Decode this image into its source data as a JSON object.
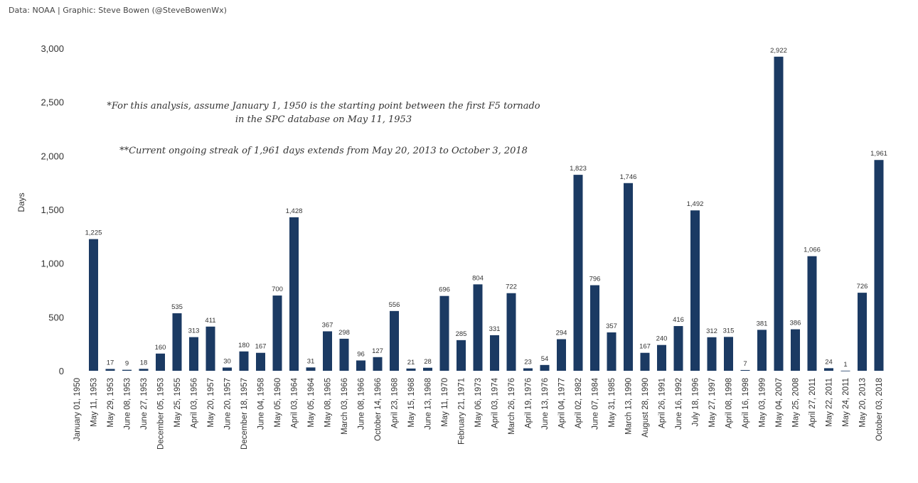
{
  "credit": "Data: NOAA | Graphic: Steve Bowen (@SteveBowenWx)",
  "annotations": [
    "*For this analysis, assume January 1, 1950 is the starting point between the first F5 tornado",
    "in the SPC database on May 11, 1953",
    "**Current ongoing streak of 1,961 days extends from May 20, 2013 to October 3, 2018"
  ],
  "chart_data": {
    "type": "bar",
    "title": "",
    "xlabel": "",
    "ylabel": "Days",
    "ylim": [
      0,
      3000
    ],
    "yticks": [
      0,
      500,
      1000,
      1500,
      2000,
      2500,
      3000
    ],
    "ytick_labels": [
      "0",
      "500",
      "1,000",
      "1,500",
      "2,000",
      "2,500",
      "3,000"
    ],
    "bar_color": "#1b3a63",
    "grid": false,
    "categories": [
      "January 01, 1950",
      "May 11, 1953",
      "May 29, 1953",
      "June 08, 1953",
      "June 27, 1953",
      "December 05, 1953",
      "May 25, 1955",
      "April 03, 1956",
      "May 20, 1957",
      "June 20, 1957",
      "December 18, 1957",
      "June 04, 1958",
      "May 05, 1960",
      "April 03, 1964",
      "May 05, 1964",
      "May 08, 1965",
      "March 03, 1966",
      "June 08, 1966",
      "October 14, 1966",
      "April 23, 1968",
      "May 15, 1968",
      "June 13, 1968",
      "May 11, 1970",
      "February 21, 1971",
      "May 06, 1973",
      "April 03, 1974",
      "March 26, 1976",
      "April 19, 1976",
      "June 13, 1976",
      "April 04, 1977",
      "April 02, 1982",
      "June 07, 1984",
      "May 31, 1985",
      "March 13, 1990",
      "August 28, 1990",
      "April 26, 1991",
      "June 16, 1992",
      "July 18, 1996",
      "May 27, 1997",
      "April 08, 1998",
      "April 16, 1998",
      "May 03, 1999",
      "May 04, 2007",
      "May 25, 2008",
      "April 27, 2011",
      "May 22, 2011",
      "May 24, 2011",
      "May 20, 2013",
      "October 03, 2018"
    ],
    "values": [
      0,
      1225,
      17,
      9,
      18,
      160,
      535,
      313,
      411,
      30,
      180,
      167,
      700,
      1428,
      31,
      367,
      298,
      96,
      127,
      556,
      21,
      28,
      696,
      285,
      804,
      331,
      722,
      23,
      54,
      294,
      1823,
      796,
      357,
      1746,
      167,
      240,
      416,
      1492,
      312,
      315,
      7,
      381,
      2922,
      386,
      1066,
      24,
      1,
      726,
      1961
    ],
    "value_labels": [
      "",
      "1,225",
      "17",
      "9",
      "18",
      "160",
      "535",
      "313",
      "411",
      "30",
      "180",
      "167",
      "700",
      "1,428",
      "31",
      "367",
      "298",
      "96",
      "127",
      "556",
      "21",
      "28",
      "696",
      "285",
      "804",
      "331",
      "722",
      "23",
      "54",
      "294",
      "1,823",
      "796",
      "357",
      "1,746",
      "167",
      "240",
      "416",
      "1,492",
      "312",
      "315",
      "7",
      "381",
      "2,922",
      "386",
      "1,066",
      "24",
      "1",
      "726",
      "1,961"
    ]
  }
}
